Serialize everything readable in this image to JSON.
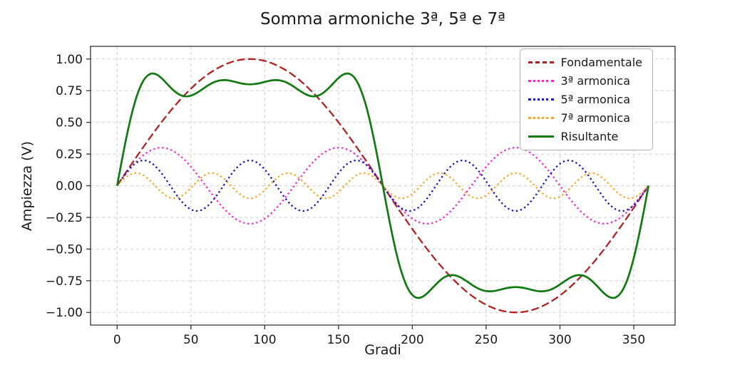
{
  "figure": {
    "background_color": "#ffffff"
  },
  "chart_data": {
    "type": "line",
    "title": "Somma armoniche 3ª, 5ª e 7ª",
    "xlabel": "Gradi",
    "ylabel": "Ampiezza (V)",
    "xlim": [
      -18,
      378
    ],
    "ylim": [
      -1.1,
      1.1
    ],
    "xticks": [
      0,
      50,
      100,
      150,
      200,
      250,
      300,
      350
    ],
    "yticks": [
      -1.0,
      -0.75,
      -0.5,
      -0.25,
      0.0,
      0.25,
      0.5,
      0.75,
      1.0
    ],
    "x_range_deg": [
      0,
      360
    ],
    "sample_step_deg": 1.5,
    "grid": true,
    "grid_style": "dashed",
    "legend_position": "upper right",
    "series": [
      {
        "name": "Fondamentale",
        "color": "#b22222",
        "style": "dashed",
        "amplitude": 1.0,
        "harmonic": 1
      },
      {
        "name": "3ª armonica",
        "color": "#ff1fd4",
        "style": "dotted",
        "amplitude": 0.3,
        "harmonic": 3
      },
      {
        "name": "5ª armonica",
        "color": "#1414cc",
        "style": "dotted",
        "amplitude": 0.2,
        "harmonic": 5
      },
      {
        "name": "7ª armonica",
        "color": "#ffa51e",
        "style": "dotted",
        "amplitude": 0.1,
        "harmonic": 7
      },
      {
        "name": "Risultante",
        "color": "#117a11",
        "style": "solid",
        "composite": "sum_of_all_harmonics",
        "key_values": {
          "deg_25": 0.89,
          "deg_90": 0.8,
          "deg_155": 0.89,
          "deg_205": -0.89,
          "deg_270": -0.8,
          "deg_335": -0.89
        }
      }
    ]
  }
}
